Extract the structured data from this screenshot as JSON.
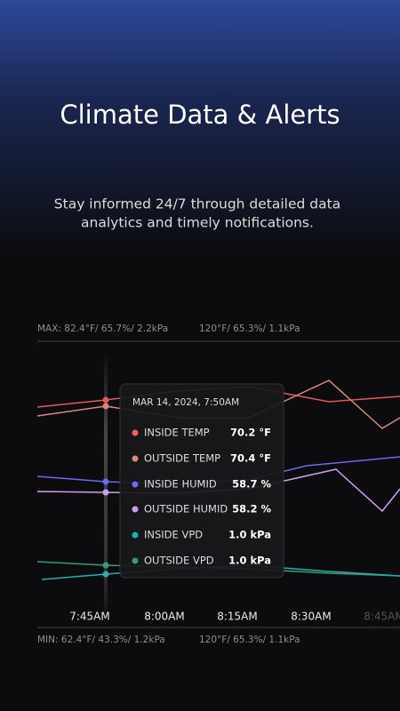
{
  "header": {
    "title": "Climate Data & Alerts",
    "subtitle": [
      "Stay informed 24/7 through detailed data",
      "analytics and timely notifications."
    ]
  },
  "chart": {
    "max_label": "MAX: 82.4°F/ 65.7%/ 2.2kPa",
    "max_label_right": "120°F/ 65.3%/ 1.1kPa",
    "min_label": "MIN: 62.4°F/ 43.3%/ 1.2kPa",
    "min_label_right": "120°F/ 65.3%/ 1.1kPa",
    "x_labels": [
      "7:45AM",
      "8:00AM",
      "8:15AM",
      "8:30AM",
      "8:45AM"
    ]
  },
  "tooltip": {
    "date": "MAR 14, 2024, 7:50AM",
    "rows": [
      {
        "label": "INSIDE TEMP",
        "value": "70.2 °F"
      },
      {
        "label": "OUTSIDE TEMP",
        "value": "70.4 °F"
      },
      {
        "label": "INSIDE HUMID",
        "value": "58.7 %"
      },
      {
        "label": "OUTSIDE HUMID",
        "value": "58.2 %"
      },
      {
        "label": "INSIDE VPD",
        "value": "1.0 kPa"
      },
      {
        "label": "OUTSIDE VPD",
        "value": "1.0 kPa"
      }
    ]
  }
}
